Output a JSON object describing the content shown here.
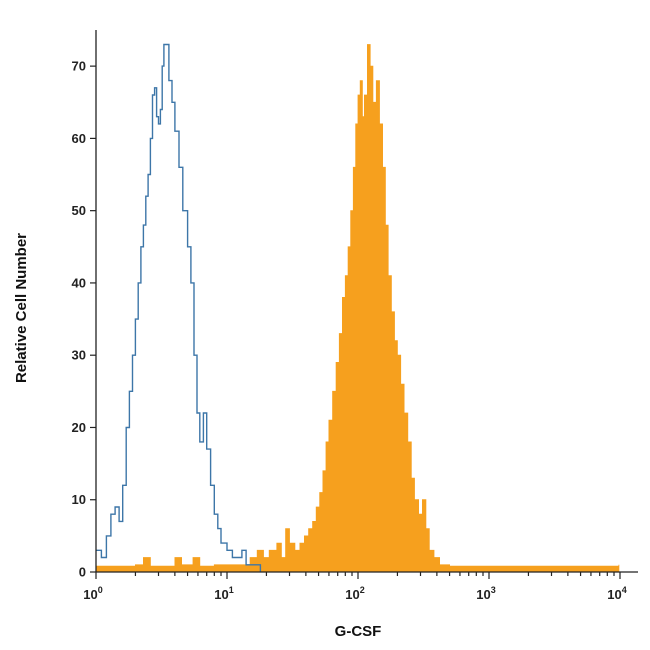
{
  "chart_data": {
    "type": "histogram",
    "xlabel": "G-CSF",
    "ylabel": "Relative Cell Number",
    "x_scale": "log",
    "xlim": [
      1,
      10000
    ],
    "ylim": [
      0,
      75
    ],
    "x_ticks": [
      {
        "value": 1,
        "base": "10",
        "exp": "0"
      },
      {
        "value": 10,
        "base": "10",
        "exp": "1"
      },
      {
        "value": 100,
        "base": "10",
        "exp": "2"
      },
      {
        "value": 1000,
        "base": "10",
        "exp": "3"
      },
      {
        "value": 10000,
        "base": "10",
        "exp": "4"
      }
    ],
    "y_ticks": [
      0,
      10,
      20,
      30,
      40,
      50,
      60,
      70
    ],
    "grid": false,
    "legend": "none",
    "series": [
      {
        "style": "outline",
        "color": "#3d76a8",
        "points": [
          [
            1.0,
            3
          ],
          [
            1.1,
            2
          ],
          [
            1.2,
            5
          ],
          [
            1.3,
            8
          ],
          [
            1.4,
            9
          ],
          [
            1.5,
            7
          ],
          [
            1.6,
            12
          ],
          [
            1.7,
            20
          ],
          [
            1.8,
            25
          ],
          [
            1.9,
            30
          ],
          [
            2.0,
            35
          ],
          [
            2.1,
            40
          ],
          [
            2.2,
            45
          ],
          [
            2.3,
            48
          ],
          [
            2.4,
            52
          ],
          [
            2.5,
            55
          ],
          [
            2.6,
            60
          ],
          [
            2.7,
            66
          ],
          [
            2.8,
            67
          ],
          [
            2.9,
            63
          ],
          [
            3.0,
            62
          ],
          [
            3.1,
            64
          ],
          [
            3.2,
            70
          ],
          [
            3.3,
            73
          ],
          [
            3.4,
            73
          ],
          [
            3.6,
            68
          ],
          [
            3.8,
            65
          ],
          [
            4.0,
            61
          ],
          [
            4.3,
            56
          ],
          [
            4.6,
            50
          ],
          [
            5.0,
            45
          ],
          [
            5.3,
            40
          ],
          [
            5.6,
            30
          ],
          [
            5.9,
            22
          ],
          [
            6.2,
            18
          ],
          [
            6.6,
            22
          ],
          [
            7.0,
            17
          ],
          [
            7.5,
            12
          ],
          [
            8.0,
            8
          ],
          [
            8.5,
            6
          ],
          [
            9.0,
            4
          ],
          [
            9.5,
            4
          ],
          [
            10.0,
            3
          ],
          [
            11.0,
            2
          ],
          [
            12.0,
            2
          ],
          [
            13.0,
            3
          ],
          [
            14.0,
            1
          ],
          [
            16.0,
            1
          ],
          [
            18.0,
            0
          ]
        ]
      },
      {
        "style": "filled",
        "color": "#f6a01e",
        "points": [
          [
            1.0,
            0.8
          ],
          [
            2.0,
            1
          ],
          [
            2.3,
            2
          ],
          [
            2.6,
            0.8
          ],
          [
            4.0,
            2
          ],
          [
            4.5,
            1
          ],
          [
            5.5,
            2
          ],
          [
            6.2,
            0.8
          ],
          [
            8.0,
            1
          ],
          [
            12.0,
            1
          ],
          [
            15.0,
            2
          ],
          [
            17.0,
            3
          ],
          [
            19.0,
            2
          ],
          [
            21.0,
            3
          ],
          [
            24.0,
            4
          ],
          [
            26.0,
            2
          ],
          [
            28.0,
            6
          ],
          [
            30.0,
            4
          ],
          [
            33.0,
            3
          ],
          [
            36.0,
            4
          ],
          [
            39.0,
            5
          ],
          [
            42.0,
            6
          ],
          [
            45.0,
            7
          ],
          [
            48.0,
            9
          ],
          [
            51.0,
            11
          ],
          [
            54.0,
            14
          ],
          [
            57.0,
            18
          ],
          [
            60.0,
            21
          ],
          [
            64.0,
            25
          ],
          [
            68.0,
            29
          ],
          [
            72.0,
            33
          ],
          [
            76.0,
            38
          ],
          [
            80.0,
            41
          ],
          [
            84.0,
            45
          ],
          [
            88.0,
            50
          ],
          [
            92.0,
            56
          ],
          [
            96.0,
            62
          ],
          [
            100.0,
            66
          ],
          [
            104.0,
            68
          ],
          [
            108.0,
            63
          ],
          [
            112.0,
            66
          ],
          [
            118.0,
            73
          ],
          [
            124.0,
            70
          ],
          [
            130.0,
            65
          ],
          [
            138.0,
            68
          ],
          [
            146.0,
            62
          ],
          [
            154.0,
            56
          ],
          [
            162.0,
            48
          ],
          [
            170.0,
            41
          ],
          [
            180.0,
            36
          ],
          [
            190.0,
            32
          ],
          [
            200.0,
            30
          ],
          [
            212.0,
            26
          ],
          [
            225.0,
            22
          ],
          [
            240.0,
            18
          ],
          [
            255.0,
            13
          ],
          [
            270.0,
            10
          ],
          [
            290.0,
            8
          ],
          [
            310.0,
            10
          ],
          [
            330.0,
            6
          ],
          [
            350.0,
            3
          ],
          [
            380.0,
            2
          ],
          [
            420.0,
            1
          ],
          [
            500.0,
            0.8
          ],
          [
            1000.0,
            0.8
          ],
          [
            5000.0,
            0.8
          ],
          [
            9800.0,
            1
          ]
        ]
      }
    ]
  }
}
